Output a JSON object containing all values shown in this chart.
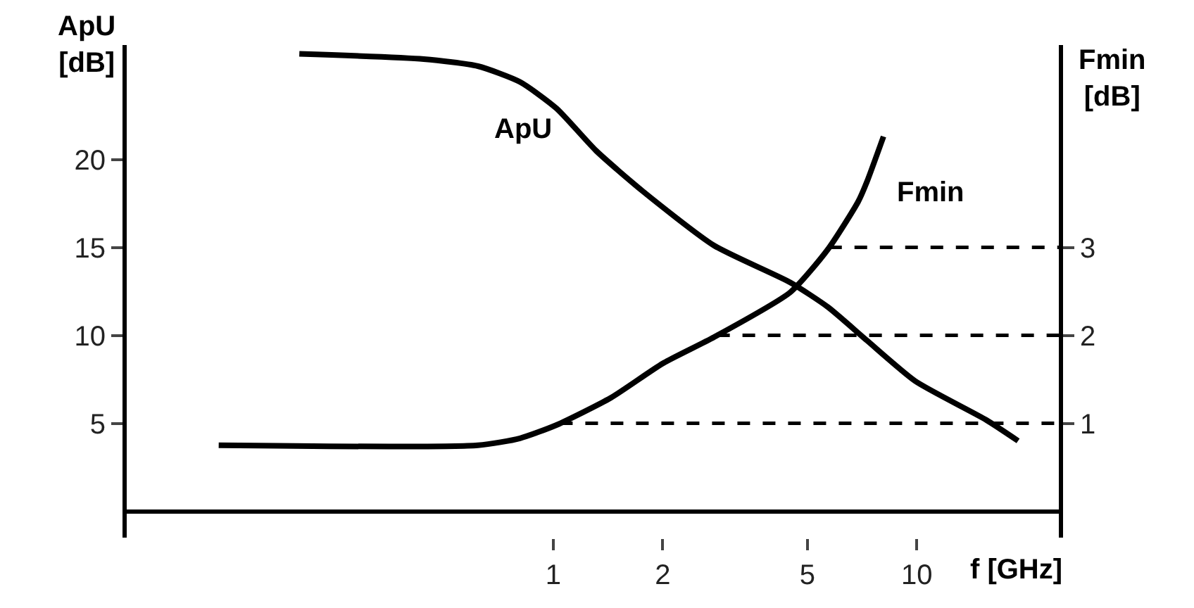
{
  "chart_data": {
    "type": "line",
    "xlabel": "f [GHz]",
    "ylabel": "ApU\n[dB]",
    "y2label": "Fmin\n[dB]",
    "log": "x",
    "legend": false,
    "marker": "none",
    "line_style": "solid",
    "xlim": [
      0.067,
      24.6
    ],
    "xticks": [
      1,
      2,
      5,
      10
    ],
    "ylim": [
      -1.5,
      26.5
    ],
    "yticks": [
      5,
      10,
      15,
      20
    ],
    "y2lim": [
      -0.3,
      5.3
    ],
    "y2ticks": [
      1,
      2,
      3
    ],
    "series": [
      {
        "name": "ApU",
        "color": "#000000",
        "x": [
          0.2,
          0.44,
          0.62,
          0.81,
          1.02,
          1.31,
          1.76,
          2.77,
          4.49,
          5.7,
          7.3,
          9.9,
          15.5,
          19
        ],
        "values": [
          26.0,
          25.7,
          25.3,
          24.4,
          22.9,
          20.5,
          18.2,
          15.1,
          13.0,
          11.6,
          9.7,
          7.4,
          5.2,
          4.0
        ]
      },
      {
        "name": "Fmin",
        "color": "#000000",
        "axis": "y2",
        "x": [
          0.12,
          0.62,
          0.81,
          1.02,
          1.44,
          2,
          2.77,
          4.49,
          5.7,
          6.9,
          7.3,
          8.1
        ],
        "values": [
          0.75,
          0.75,
          0.83,
          0.98,
          1.29,
          1.68,
          1.98,
          2.49,
          2.98,
          3.52,
          3.75,
          4.26
        ]
      }
    ],
    "ref_lines": [
      {
        "axis": "y2",
        "value": 1,
        "color": "#000000",
        "line_style": "dashed"
      },
      {
        "axis": "y2",
        "value": 2,
        "color": "#000000",
        "line_style": "dashed"
      },
      {
        "axis": "y2",
        "value": 3,
        "color": "#000000",
        "line_style": "dashed"
      }
    ]
  }
}
